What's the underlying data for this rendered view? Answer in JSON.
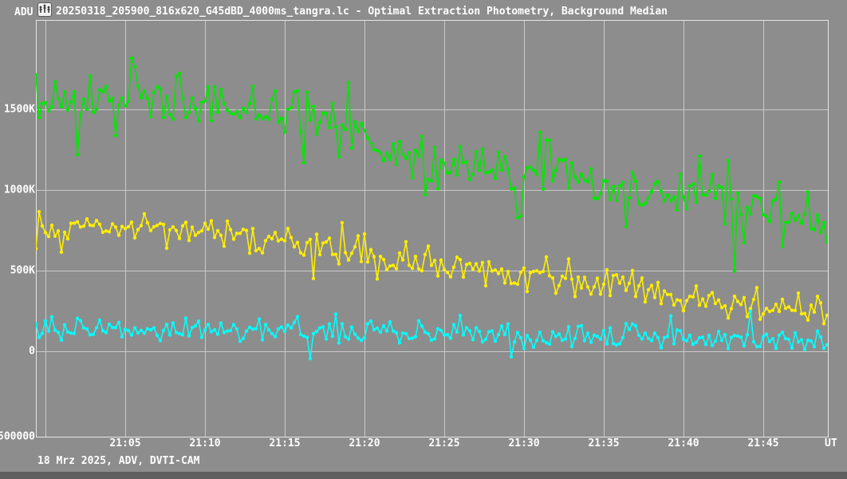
{
  "window": {
    "title": "20250318_205900_816x620_G45dBD_4000ms_tangra.lc - Optimal Extraction Photometry, Background Median",
    "y_unit": "ADU",
    "x_unit": "UT",
    "footer": "18 Mrz 2025, ADV, DVTI-CAM",
    "icon": "chart-icon"
  },
  "colors": {
    "background": "#8d8d8d",
    "grid": "#c9c9c9",
    "frame": "#e6e6e6",
    "text": "#ffffff",
    "bottom_strip": "#5f5f5f",
    "icon_bg": "#f2f2f2",
    "icon_glyph": "#3c3c3c"
  },
  "chart_data": {
    "type": "line",
    "style": "linespoints",
    "title": "20250318_205900_816x620_G45dBD_4000ms_tangra.lc - Optimal Extraction Photometry, Background Median",
    "xlabel": "UT",
    "ylabel": "ADU",
    "grid": true,
    "legend": "none",
    "x_axis": {
      "base_time": "21:00",
      "min_minutes": -0.6,
      "max_minutes": 49.05,
      "gridline_minutes": [
        0,
        5,
        10,
        15,
        20,
        25,
        30,
        35,
        40,
        45
      ],
      "ticks": [
        {
          "m": 5,
          "label": "21:05"
        },
        {
          "m": 10,
          "label": "21:10"
        },
        {
          "m": 15,
          "label": "21:15"
        },
        {
          "m": 20,
          "label": "21:20"
        },
        {
          "m": 25,
          "label": "21:25"
        },
        {
          "m": 30,
          "label": "21:30"
        },
        {
          "m": 35,
          "label": "21:35"
        },
        {
          "m": 40,
          "label": "21:40"
        },
        {
          "m": 45,
          "label": "21:45"
        }
      ]
    },
    "y_axis": {
      "min": -530000,
      "max": 2055000,
      "ticks": [
        {
          "v": 1500000,
          "label": "1500K"
        },
        {
          "v": 1000000,
          "label": "1000K"
        },
        {
          "v": 500000,
          "label": "500K"
        },
        {
          "v": 0,
          "label": "0"
        }
      ],
      "bottom_left_label": "500000",
      "bottom_left_value": -500000
    },
    "sample_step_min": 0.2,
    "marker_radius": 2.2,
    "line_width": 1.6,
    "series": [
      {
        "name": "target-star-green",
        "color": "#00e800",
        "sigma": 78000,
        "spike_prob": 0.09,
        "spike_scale": 2.3,
        "seed": 7,
        "trend_minutes_adu": [
          [
            -0.6,
            1500000
          ],
          [
            0,
            1545000
          ],
          [
            2,
            1565000
          ],
          [
            4,
            1590000
          ],
          [
            6,
            1580000
          ],
          [
            8,
            1560000
          ],
          [
            10,
            1545000
          ],
          [
            12,
            1520000
          ],
          [
            14,
            1500000
          ],
          [
            16,
            1468000
          ],
          [
            17.5,
            1430000
          ],
          [
            19,
            1355000
          ],
          [
            20,
            1300000
          ],
          [
            21,
            1262000
          ],
          [
            22,
            1240000
          ],
          [
            23,
            1210000
          ],
          [
            24,
            1180000
          ],
          [
            25,
            1152000
          ],
          [
            26,
            1140000
          ],
          [
            27,
            1128000
          ],
          [
            28,
            1118000
          ],
          [
            29,
            1110000
          ],
          [
            30,
            1120000
          ],
          [
            31,
            1138000
          ],
          [
            32,
            1115000
          ],
          [
            33,
            1078000
          ],
          [
            34,
            1040000
          ],
          [
            35,
            1020000
          ],
          [
            36,
            1008000
          ],
          [
            37,
            990000
          ],
          [
            38,
            970000
          ],
          [
            39,
            952000
          ],
          [
            40,
            938000
          ],
          [
            41,
            928000
          ],
          [
            42,
            910000
          ],
          [
            43,
            892000
          ],
          [
            44,
            878000
          ],
          [
            45,
            858000
          ],
          [
            46,
            832000
          ],
          [
            47,
            800000
          ],
          [
            48,
            768000
          ],
          [
            49.05,
            715000
          ]
        ]
      },
      {
        "name": "comparison-1-yellow",
        "color": "#ffee00",
        "sigma": 48000,
        "spike_prob": 0.08,
        "spike_scale": 2.2,
        "seed": 13,
        "trend_minutes_adu": [
          [
            -0.6,
            735000
          ],
          [
            0,
            745000
          ],
          [
            2,
            756000
          ],
          [
            4,
            760000
          ],
          [
            6,
            752000
          ],
          [
            8,
            742000
          ],
          [
            10,
            728000
          ],
          [
            12,
            710000
          ],
          [
            14,
            688000
          ],
          [
            16,
            662000
          ],
          [
            18,
            638000
          ],
          [
            20,
            612000
          ],
          [
            22,
            582000
          ],
          [
            24,
            550000
          ],
          [
            26,
            522000
          ],
          [
            28,
            498000
          ],
          [
            30,
            476000
          ],
          [
            32,
            448000
          ],
          [
            34,
            418000
          ],
          [
            36,
            395000
          ],
          [
            38,
            365000
          ],
          [
            40,
            332000
          ],
          [
            42,
            310000
          ],
          [
            44,
            290000
          ],
          [
            45,
            278000
          ],
          [
            46,
            266000
          ],
          [
            47,
            256000
          ],
          [
            48,
            246000
          ],
          [
            49.05,
            232000
          ]
        ]
      },
      {
        "name": "comparison-2-cyan",
        "color": "#00ffff",
        "sigma": 37000,
        "spike_prob": 0.07,
        "spike_scale": 2.2,
        "seed": 29,
        "trend_minutes_adu": [
          [
            -0.6,
            132000
          ],
          [
            0,
            135000
          ],
          [
            5,
            130000
          ],
          [
            10,
            126000
          ],
          [
            15,
            120000
          ],
          [
            20,
            112000
          ],
          [
            25,
            104000
          ],
          [
            30,
            98000
          ],
          [
            35,
            95000
          ],
          [
            40,
            90000
          ],
          [
            45,
            80000
          ],
          [
            47,
            70000
          ],
          [
            49.05,
            55000
          ]
        ]
      }
    ]
  }
}
